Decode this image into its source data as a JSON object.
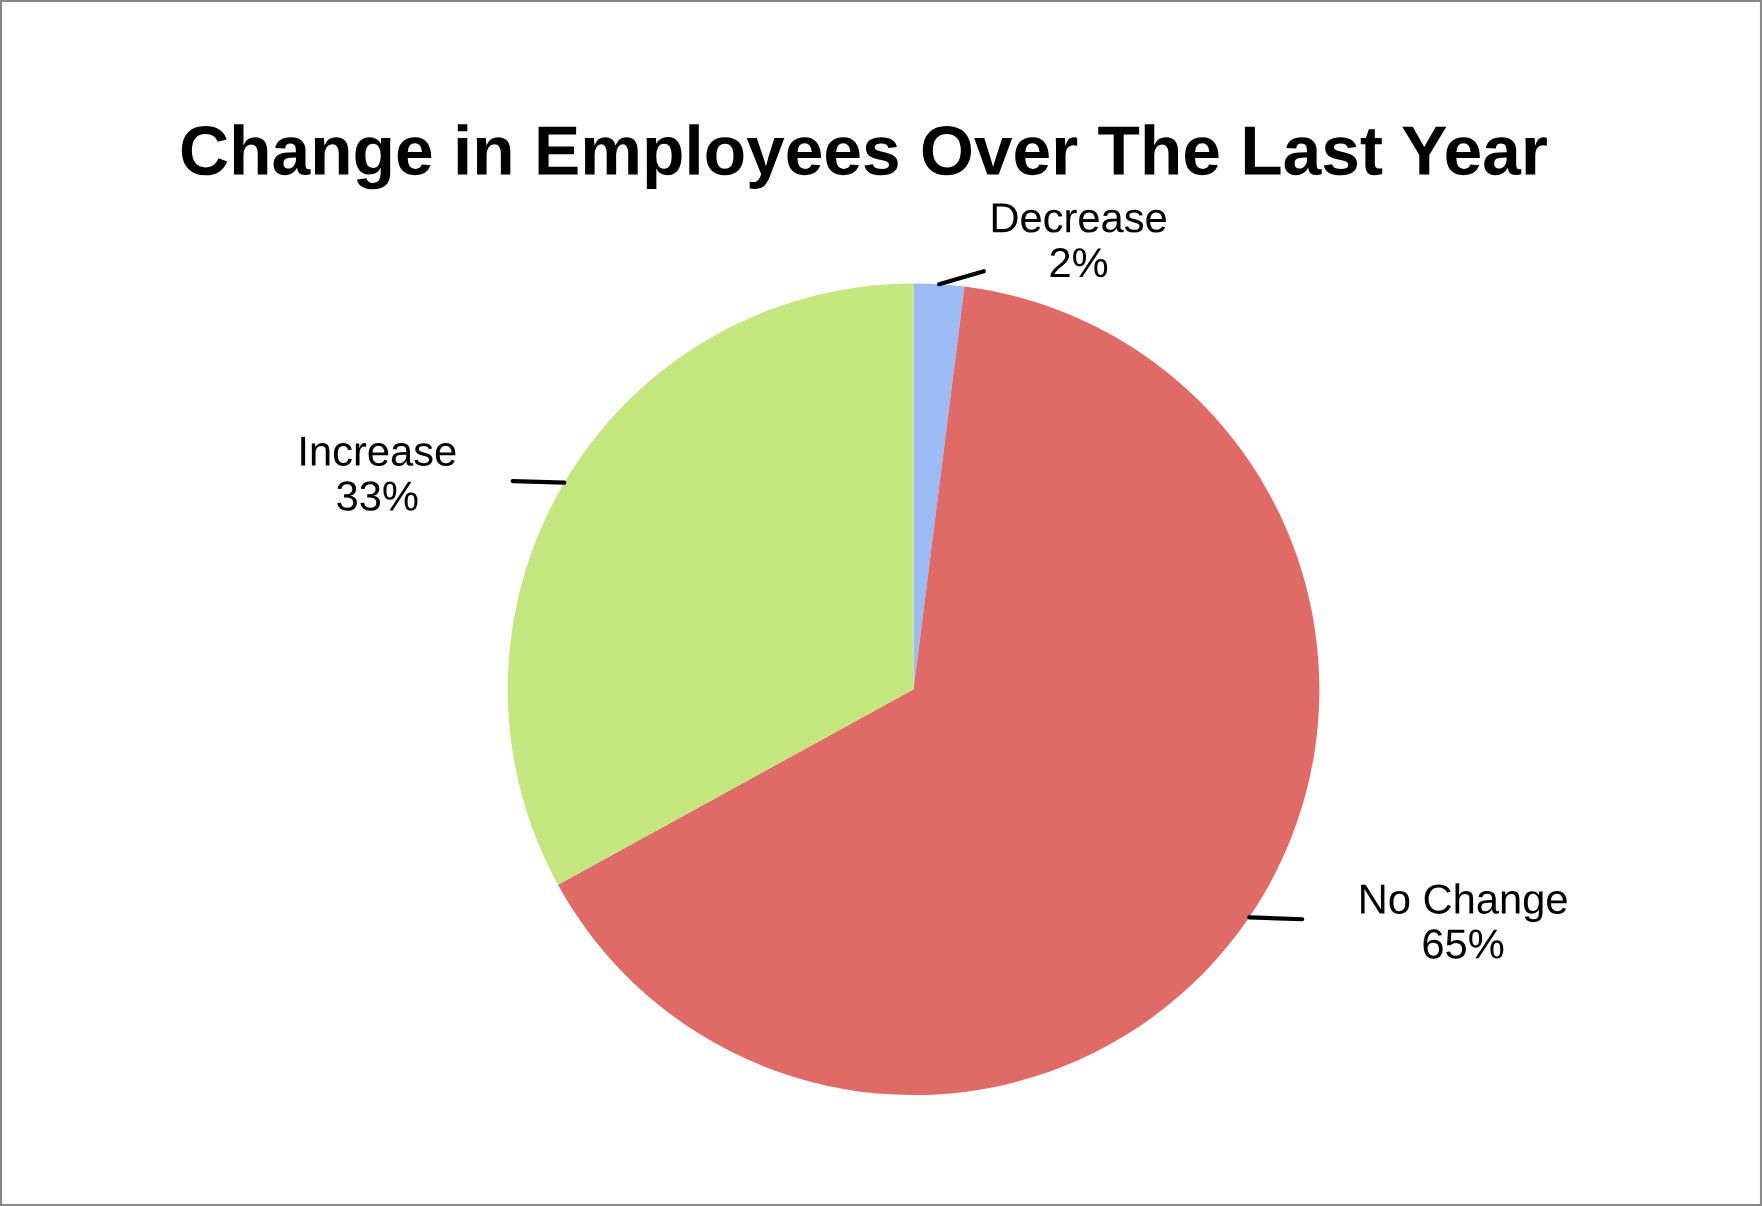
{
  "chart_data": {
    "type": "pie",
    "title": "Change in Employees Over The Last Year",
    "categories": [
      "Decrease",
      "No Change",
      "Increase"
    ],
    "values": [
      2,
      65,
      33
    ],
    "value_labels": [
      "2%",
      "65%",
      "33%"
    ],
    "colors": [
      "#9bbbf5",
      "#e06a66",
      "#c4e67e"
    ],
    "legend": false
  }
}
